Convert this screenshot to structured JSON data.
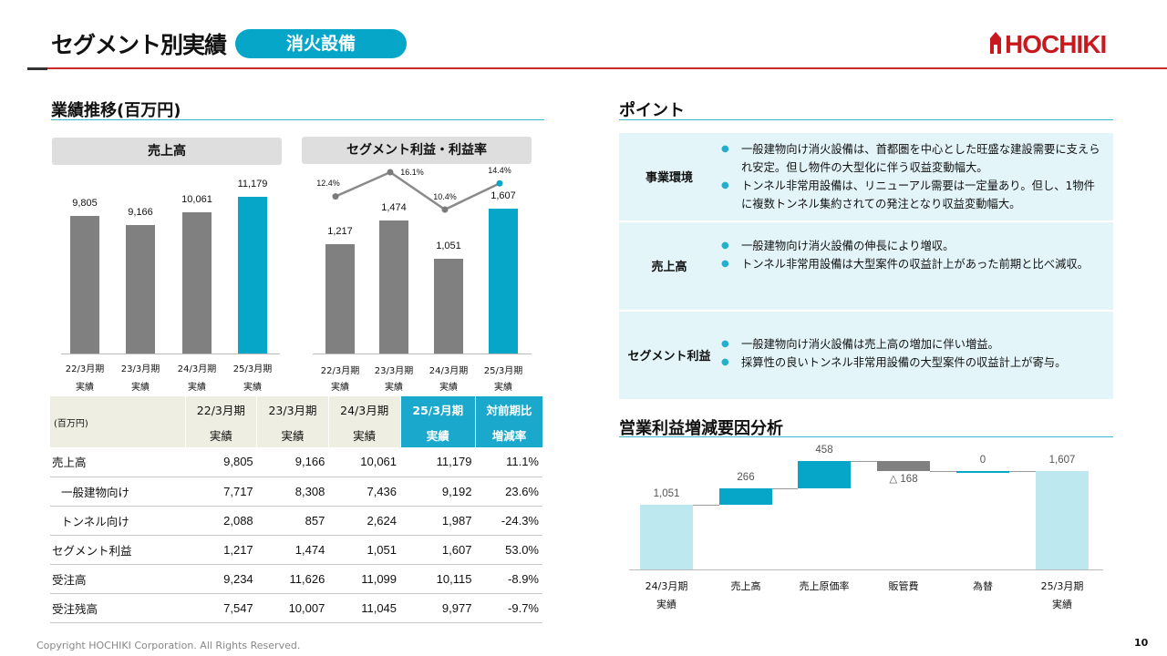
{
  "header": {
    "title": "セグメント別実績",
    "segment": "消火設備",
    "logo_text": "HOCHIKI",
    "logo_color": "#c8191f"
  },
  "left": {
    "heading": "業績推移(百万円)",
    "sales_label": "売上高",
    "profit_label": "セグメント利益・利益率",
    "period_sub": "実績"
  },
  "points": {
    "heading": "ポイント",
    "rows": [
      {
        "label": "事業環境",
        "items": [
          "一般建物向け消火設備は、首都圏を中心とした旺盛な建設需要に支えられ安定。但し物件の大型化に伴う収益変動幅大。",
          "トンネル非常用設備は、リニューアル需要は一定量あり。但し、1物件に複数トンネル集約されての発注となり収益変動幅大。"
        ]
      },
      {
        "label": "売上高",
        "items": [
          "一般建物向け消火設備の伸長により増収。",
          "トンネル非常用設備は大型案件の収益計上があった前期と比べ減収。"
        ]
      },
      {
        "label": "セグメント利益",
        "items": [
          "一般建物向け消火設備は売上高の増加に伴い増益。",
          "採算性の良いトンネル非常用設備の大型案件の収益計上が寄与。"
        ]
      }
    ]
  },
  "waterfall_heading": "営業利益増減要因分析",
  "table": {
    "unit": "(百万円)",
    "headers": [
      {
        "top": "22/3月期",
        "bottom": "実績"
      },
      {
        "top": "23/3月期",
        "bottom": "実績"
      },
      {
        "top": "24/3月期",
        "bottom": "実績"
      },
      {
        "top": "25/3月期",
        "bottom": "実績"
      },
      {
        "top": "対前期比",
        "bottom": "増減率"
      }
    ],
    "rows": [
      {
        "label": "売上高",
        "sub": false,
        "cells": [
          "9,805",
          "9,166",
          "10,061",
          "11,179",
          "11.1%"
        ]
      },
      {
        "label": "一般建物向け",
        "sub": true,
        "cells": [
          "7,717",
          "8,308",
          "7,436",
          "9,192",
          "23.6%"
        ]
      },
      {
        "label": "トンネル向け",
        "sub": true,
        "cells": [
          "2,088",
          "857",
          "2,624",
          "1,987",
          "-24.3%"
        ]
      },
      {
        "label": "セグメント利益",
        "sub": false,
        "cells": [
          "1,217",
          "1,474",
          "1,051",
          "1,607",
          "53.0%"
        ]
      },
      {
        "label": "受注高",
        "sub": false,
        "cells": [
          "9,234",
          "11,626",
          "11,099",
          "10,115",
          "-8.9%"
        ]
      },
      {
        "label": "受注残高",
        "sub": false,
        "cells": [
          "7,547",
          "10,007",
          "11,045",
          "9,977",
          "-9.7%"
        ]
      }
    ]
  },
  "chart_data": [
    {
      "type": "bar",
      "title": "売上高",
      "categories": [
        "22/3月期",
        "23/3月期",
        "24/3月期",
        "25/3月期"
      ],
      "category_sub": "実績",
      "values": [
        9805,
        9166,
        10061,
        11179
      ],
      "value_labels": [
        "9,805",
        "9,166",
        "10,061",
        "11,179"
      ],
      "colors": [
        "#808080",
        "#808080",
        "#808080",
        "#06a6c8"
      ]
    },
    {
      "type": "bar",
      "title": "セグメント利益・利益率",
      "categories": [
        "22/3月期",
        "23/3月期",
        "24/3月期",
        "25/3月期"
      ],
      "category_sub": "実績",
      "series": [
        {
          "values": [
            1217,
            1474,
            1051,
            1607
          ],
          "labels": [
            "1,217",
            "1,474",
            "1,051",
            "1,607"
          ]
        },
        {
          "type": "line",
          "values": [
            12.4,
            16.1,
            10.4,
            14.4
          ],
          "labels": [
            "12.4%",
            "16.1%",
            "10.4%",
            "14.4%"
          ]
        }
      ],
      "colors": [
        "#808080",
        "#808080",
        "#808080",
        "#06a6c8"
      ]
    },
    {
      "type": "bar",
      "title": "営業利益増減要因分析",
      "categories": [
        [
          "24/3月期",
          "実績"
        ],
        [
          "売上高"
        ],
        [
          "売上原価率"
        ],
        [
          "販管費"
        ],
        [
          "為替"
        ],
        [
          "25/3月期",
          "実績"
        ]
      ],
      "values": [
        1051,
        266,
        458,
        -168,
        0,
        1607
      ],
      "value_labels": [
        "1,051",
        "266",
        "458",
        "△ 168",
        "0",
        "1,607"
      ],
      "colors": {
        "total": "#bde8f0",
        "increase": "#06a6c8",
        "decrease": "#808080"
      }
    }
  ],
  "footer": {
    "copyright": "Copyright HOCHIKI Corporation. All Rights Reserved.",
    "page": "10"
  }
}
